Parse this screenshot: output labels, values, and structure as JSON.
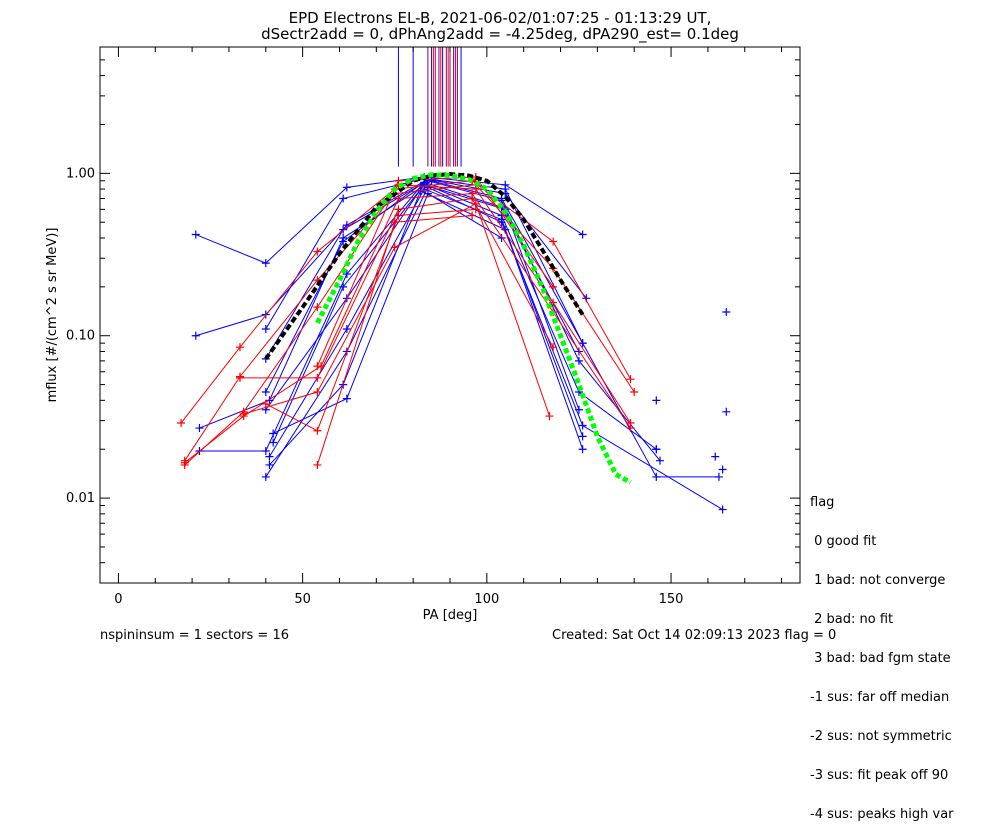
{
  "header": {
    "title_line1": "EPD Electrons EL-B, 2021-06-02/01:07:25 - 01:13:29 UT,",
    "title_line2": "dSectr2add = 0, dPhAng2add = -4.25deg, dPA290_est=   0.1deg"
  },
  "footer": {
    "left": "nspininsum =  1  sectors = 16",
    "right": "Created: Sat Oct 14 02:09:13 2023   flag = 0"
  },
  "legend": {
    "title": "flag",
    "items": [
      " 0 good fit",
      " 1 bad: not converge",
      " 2 bad: no fit",
      " 3 bad: bad fgm state",
      "-1 sus: far off median",
      "-2 sus: not symmetric",
      "-3 sus: fit peak off 90",
      "-4 sus: peaks high var"
    ]
  },
  "colors": {
    "blue": "#0000ff",
    "red": "#ff0000",
    "purple": "#800080",
    "green": "#00ff00",
    "black": "#000000"
  },
  "chart_data": {
    "type": "line",
    "xlabel": "PA [deg]",
    "ylabel": "mflux [#/(cm^2 s sr MeV)]",
    "xlim": [
      -5,
      185
    ],
    "ylim": [
      0.003,
      6
    ],
    "yscale": "log",
    "x_ticks": [
      0,
      50,
      100,
      150
    ],
    "y_ticks": [
      0.01,
      0.1,
      1.0
    ],
    "y_tick_labels": [
      "0.01",
      "0.10",
      "1.00"
    ],
    "vertical_markers": {
      "y_range": [
        1.1,
        6
      ],
      "blue": [
        76,
        80,
        85,
        88,
        91,
        93
      ],
      "purple": [
        84,
        86,
        87,
        89,
        90,
        92
      ],
      "red": [
        85.5,
        87.5,
        89.5,
        91.5
      ]
    },
    "series": [
      {
        "color": "blue",
        "x": [
          21,
          40,
          62,
          83,
          105,
          126
        ],
        "y": [
          0.42,
          0.28,
          0.82,
          0.95,
          0.85,
          0.42
        ]
      },
      {
        "color": "blue",
        "x": [
          21,
          40,
          62,
          84,
          105,
          127
        ],
        "y": [
          0.1,
          0.135,
          0.48,
          0.92,
          0.75,
          0.17
        ]
      },
      {
        "color": "blue",
        "x": [
          22,
          41,
          61,
          85,
          104,
          126
        ],
        "y": [
          0.027,
          0.04,
          0.4,
          0.9,
          0.7,
          0.09
        ]
      },
      {
        "color": "blue",
        "x": [
          22,
          40,
          62,
          83,
          104,
          125
        ],
        "y": [
          0.0195,
          0.0195,
          0.24,
          0.88,
          0.62,
          0.08
        ]
      },
      {
        "color": "blue",
        "x": [
          40,
          61,
          83,
          105,
          126,
          146,
          163
        ],
        "y": [
          0.11,
          0.7,
          0.93,
          0.8,
          0.09,
          0.0135,
          0.0135
        ]
      },
      {
        "color": "blue",
        "x": [
          40,
          61,
          84,
          104,
          125,
          147
        ],
        "y": [
          0.072,
          0.45,
          0.9,
          0.68,
          0.07,
          0.017
        ]
      },
      {
        "color": "blue",
        "x": [
          40,
          62,
          83,
          104,
          125,
          146
        ],
        "y": [
          0.035,
          0.17,
          0.86,
          0.55,
          0.045,
          0.02
        ]
      },
      {
        "color": "blue",
        "x": [
          40,
          62,
          84,
          104,
          126,
          164
        ],
        "y": [
          0.0135,
          0.08,
          0.82,
          0.5,
          0.028,
          0.0085
        ]
      },
      {
        "color": "blue",
        "x": [
          41,
          61,
          82,
          105,
          126
        ],
        "y": [
          0.016,
          0.05,
          0.78,
          0.45,
          0.02
        ]
      },
      {
        "color": "blue",
        "x": [
          41,
          62,
          83,
          104,
          126
        ],
        "y": [
          0.018,
          0.11,
          0.8,
          0.52,
          0.024
        ]
      },
      {
        "color": "blue",
        "x": [
          42,
          61,
          83,
          105,
          125
        ],
        "y": [
          0.022,
          0.2,
          0.85,
          0.6,
          0.035
        ]
      },
      {
        "color": "blue",
        "x": [
          42,
          62,
          84,
          104
        ],
        "y": [
          0.025,
          0.041,
          0.75,
          0.4
        ]
      },
      {
        "color": "blue",
        "x": [
          40,
          61,
          84
        ],
        "y": [
          0.045,
          0.38,
          0.92
        ]
      },
      {
        "color": "red",
        "x": [
          17,
          33,
          54,
          75,
          96,
          118,
          139
        ],
        "y": [
          0.029,
          0.085,
          0.33,
          0.8,
          0.9,
          0.38,
          0.054
        ]
      },
      {
        "color": "red",
        "x": [
          18,
          33,
          54,
          75,
          97,
          118,
          140
        ],
        "y": [
          0.017,
          0.056,
          0.22,
          0.75,
          0.85,
          0.26,
          0.045
        ]
      },
      {
        "color": "red",
        "x": [
          18,
          34,
          54,
          76,
          97,
          118,
          139
        ],
        "y": [
          0.016,
          0.034,
          0.15,
          0.85,
          0.8,
          0.16,
          0.029
        ]
      },
      {
        "color": "red",
        "x": [
          18,
          34,
          55,
          76,
          96,
          118,
          139
        ],
        "y": [
          0.0165,
          0.032,
          0.065,
          0.7,
          0.75,
          0.14,
          0.027
        ]
      },
      {
        "color": "red",
        "x": [
          33,
          54,
          76,
          96,
          118
        ],
        "y": [
          0.055,
          0.055,
          0.6,
          0.7,
          0.085
        ]
      },
      {
        "color": "red",
        "x": [
          34,
          54,
          75,
          97,
          117
        ],
        "y": [
          0.033,
          0.045,
          0.35,
          0.65,
          0.032
        ]
      },
      {
        "color": "red",
        "x": [
          40,
          54,
          76,
          97
        ],
        "y": [
          0.038,
          0.026,
          0.55,
          0.6
        ]
      },
      {
        "color": "red",
        "x": [
          54,
          75,
          96
        ],
        "y": [
          0.016,
          0.5,
          0.55
        ]
      },
      {
        "color": "red",
        "x": [
          54,
          76,
          97,
          118
        ],
        "y": [
          0.065,
          0.9,
          0.95,
          0.2
        ]
      }
    ],
    "fit_curves": [
      {
        "color": "black",
        "x": [
          40,
          50,
          60,
          70,
          80,
          85,
          90,
          95,
          100,
          105,
          110,
          115,
          120,
          126
        ],
        "y": [
          0.072,
          0.15,
          0.32,
          0.62,
          0.9,
          0.97,
          0.99,
          0.97,
          0.9,
          0.72,
          0.52,
          0.34,
          0.22,
          0.135
        ]
      },
      {
        "color": "green",
        "x": [
          54,
          60,
          65,
          70,
          75,
          80,
          85,
          90,
          95,
          100,
          105,
          110,
          115,
          120,
          125,
          130,
          135,
          139
        ],
        "y": [
          0.12,
          0.22,
          0.38,
          0.58,
          0.8,
          0.93,
          0.98,
          0.97,
          0.92,
          0.8,
          0.58,
          0.36,
          0.2,
          0.1,
          0.05,
          0.024,
          0.014,
          0.0125
        ]
      }
    ],
    "stray_points": [
      {
        "color": "blue",
        "x": 165,
        "y": 0.14
      },
      {
        "color": "blue",
        "x": 165,
        "y": 0.034
      },
      {
        "color": "blue",
        "x": 162,
        "y": 0.018
      },
      {
        "color": "blue",
        "x": 164,
        "y": 0.015
      },
      {
        "color": "blue",
        "x": 146,
        "y": 0.04
      },
      {
        "color": "blue",
        "x": 146,
        "y": 0.02
      },
      {
        "color": "red",
        "x": 97,
        "y": 0.92
      },
      {
        "color": "red",
        "x": 96,
        "y": 0.9
      }
    ]
  }
}
